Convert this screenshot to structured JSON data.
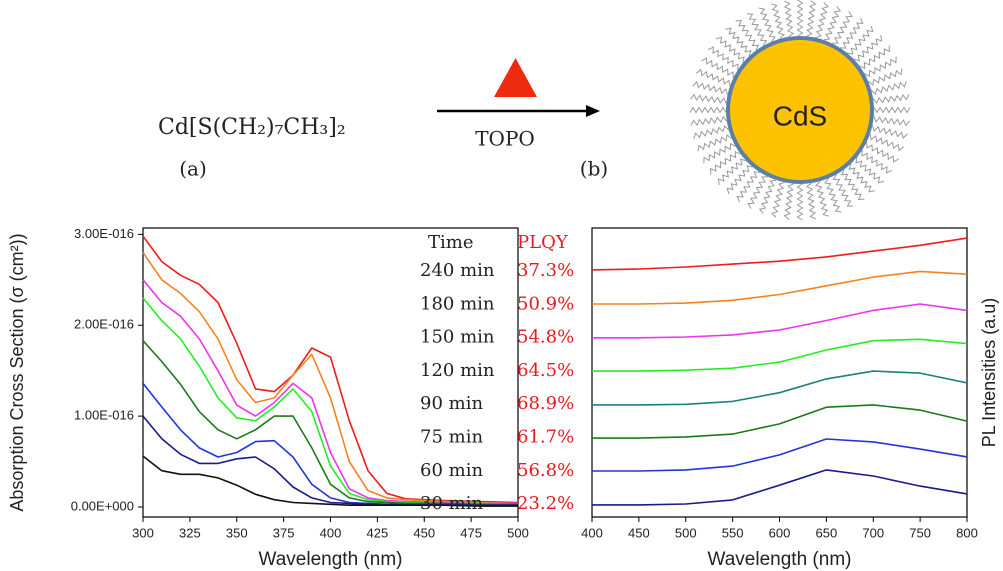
{
  "scheme": {
    "precursor": "Cd[S(CH₂)₇CH₃]₂",
    "label_a": "(a)",
    "reagent": "TOPO",
    "label_b": "(b)",
    "particle": "CdS"
  },
  "plqy_table": {
    "headers": [
      "Time",
      "PLQY"
    ],
    "rows": [
      [
        "240 min",
        "37.3%"
      ],
      [
        "180 min",
        "50.9%"
      ],
      [
        "150 min",
        "54.8%"
      ],
      [
        "120 min",
        "64.5%"
      ],
      [
        "90 min",
        "68.9%"
      ],
      [
        "75 min",
        "61.7%"
      ],
      [
        "60 min",
        "56.8%"
      ],
      [
        "30 min",
        "23.2%"
      ]
    ]
  },
  "chart_data": [
    {
      "type": "line",
      "xlabel": "Wavelength (nm)",
      "ylabel": "Absorption Cross Section (σ (cm²))",
      "x": [
        300,
        310,
        320,
        330,
        340,
        350,
        360,
        370,
        380,
        390,
        400,
        410,
        420,
        430,
        440,
        460,
        480,
        500
      ],
      "xlim": [
        300,
        500
      ],
      "xticks": [
        300,
        325,
        350,
        375,
        400,
        425,
        450,
        475,
        500
      ],
      "ylim": [
        -1.1e-17,
        3.07e-16
      ],
      "yticks": [
        {
          "value": 0,
          "label": "0.00E+000"
        },
        {
          "value": 1e-16,
          "label": "1.00E-016"
        },
        {
          "value": 2e-16,
          "label": "2.00E-016"
        },
        {
          "value": 3e-16,
          "label": "3.00E-016"
        }
      ],
      "series": [
        {
          "color": "#ee1c1c",
          "values": [
            2.98e-16,
            2.7e-16,
            2.55e-16,
            2.45e-16,
            2.25e-16,
            1.8e-16,
            1.3e-16,
            1.27e-16,
            1.45e-16,
            1.75e-16,
            1.65e-16,
            9.5e-17,
            4e-17,
            1.5e-17,
            9e-18,
            7e-18,
            6e-18,
            5e-18
          ]
        },
        {
          "color": "#f58220",
          "values": [
            2.8e-16,
            2.5e-16,
            2.35e-16,
            2.15e-16,
            1.85e-16,
            1.4e-16,
            1.15e-16,
            1.2e-16,
            1.45e-16,
            1.68e-16,
            1.2e-16,
            5e-17,
            1.8e-17,
            1e-17,
            8e-18,
            6e-18,
            5e-18,
            4e-18
          ]
        },
        {
          "color": "#ee33ee",
          "values": [
            2.5e-16,
            2.25e-16,
            2.1e-16,
            1.85e-16,
            1.5e-16,
            1.12e-16,
            1e-16,
            1.15e-16,
            1.36e-16,
            1.2e-16,
            6e-17,
            2e-17,
            1e-17,
            7e-18,
            6e-18,
            5e-18,
            4e-18,
            4e-18
          ]
        },
        {
          "color": "#22ee22",
          "values": [
            2.3e-16,
            2.05e-16,
            1.85e-16,
            1.55e-16,
            1.2e-16,
            9.8e-17,
            9.5e-17,
            1.1e-16,
            1.3e-16,
            1.05e-16,
            4.5e-17,
            1.5e-17,
            8e-18,
            6e-18,
            5e-18,
            4e-18,
            4e-18,
            3e-18
          ]
        },
        {
          "color": "#1a7a1a",
          "values": [
            1.83e-16,
            1.6e-16,
            1.35e-16,
            1.05e-16,
            8.5e-17,
            7.5e-17,
            8.5e-17,
            1e-16,
            1e-16,
            6.5e-17,
            2.5e-17,
            1e-17,
            6e-18,
            5e-18,
            4e-18,
            4e-18,
            3e-18,
            3e-18
          ]
        },
        {
          "color": "#2233dd",
          "values": [
            1.36e-16,
            1.1e-16,
            8.5e-17,
            6.5e-17,
            5.5e-17,
            6e-17,
            7.2e-17,
            7.3e-17,
            5.5e-17,
            2.5e-17,
            1e-17,
            5e-18,
            4e-18,
            3e-18,
            3e-18,
            3e-18,
            2e-18,
            2e-18
          ]
        },
        {
          "color": "#1a1a8c",
          "values": [
            1e-16,
            7.5e-17,
            5.8e-17,
            4.8e-17,
            4.8e-17,
            5.3e-17,
            5.5e-17,
            4.2e-17,
            2.2e-17,
            1e-17,
            5e-18,
            4e-18,
            3e-18,
            3e-18,
            2e-18,
            2e-18,
            2e-18,
            2e-18
          ]
        },
        {
          "color": "#111111",
          "values": [
            5.6e-17,
            4e-17,
            3.6e-17,
            3.6e-17,
            3.2e-17,
            2.4e-17,
            1.4e-17,
            8e-18,
            5e-18,
            4e-18,
            3e-18,
            2e-18,
            2e-18,
            2e-18,
            2e-18,
            2e-18,
            1e-18,
            1e-18
          ]
        }
      ]
    },
    {
      "type": "line",
      "xlabel": "Wavelength (nm)",
      "ylabel": "PL Intensities (a.u)",
      "x": [
        400,
        450,
        500,
        550,
        600,
        650,
        700,
        750,
        800
      ],
      "xlim": [
        400,
        800
      ],
      "xticks": [
        400,
        450,
        500,
        550,
        600,
        650,
        700,
        750,
        800
      ],
      "ylim": [
        0,
        10
      ],
      "series": [
        {
          "color": "#ee1c1c",
          "values": [
            8.55,
            8.58,
            8.65,
            8.75,
            8.85,
            9.0,
            9.2,
            9.4,
            9.65
          ]
        },
        {
          "color": "#f58220",
          "values": [
            7.37,
            7.37,
            7.4,
            7.5,
            7.7,
            8.0,
            8.3,
            8.5,
            8.4
          ]
        },
        {
          "color": "#ee33ee",
          "values": [
            6.2,
            6.2,
            6.23,
            6.3,
            6.47,
            6.8,
            7.15,
            7.37,
            7.15
          ]
        },
        {
          "color": "#22ee22",
          "values": [
            5.05,
            5.05,
            5.08,
            5.15,
            5.36,
            5.78,
            6.1,
            6.15,
            6.0
          ]
        },
        {
          "color": "#1a8080",
          "values": [
            3.88,
            3.88,
            3.9,
            4.0,
            4.3,
            4.78,
            5.05,
            4.98,
            4.64
          ]
        },
        {
          "color": "#1a7a1a",
          "values": [
            2.73,
            2.73,
            2.77,
            2.87,
            3.22,
            3.8,
            3.88,
            3.7,
            3.32
          ]
        },
        {
          "color": "#2233dd",
          "values": [
            1.59,
            1.59,
            1.63,
            1.76,
            2.15,
            2.7,
            2.6,
            2.35,
            2.08
          ]
        },
        {
          "color": "#1a1a8c",
          "values": [
            0.42,
            0.42,
            0.45,
            0.59,
            1.1,
            1.63,
            1.42,
            1.07,
            0.8
          ]
        }
      ]
    }
  ]
}
